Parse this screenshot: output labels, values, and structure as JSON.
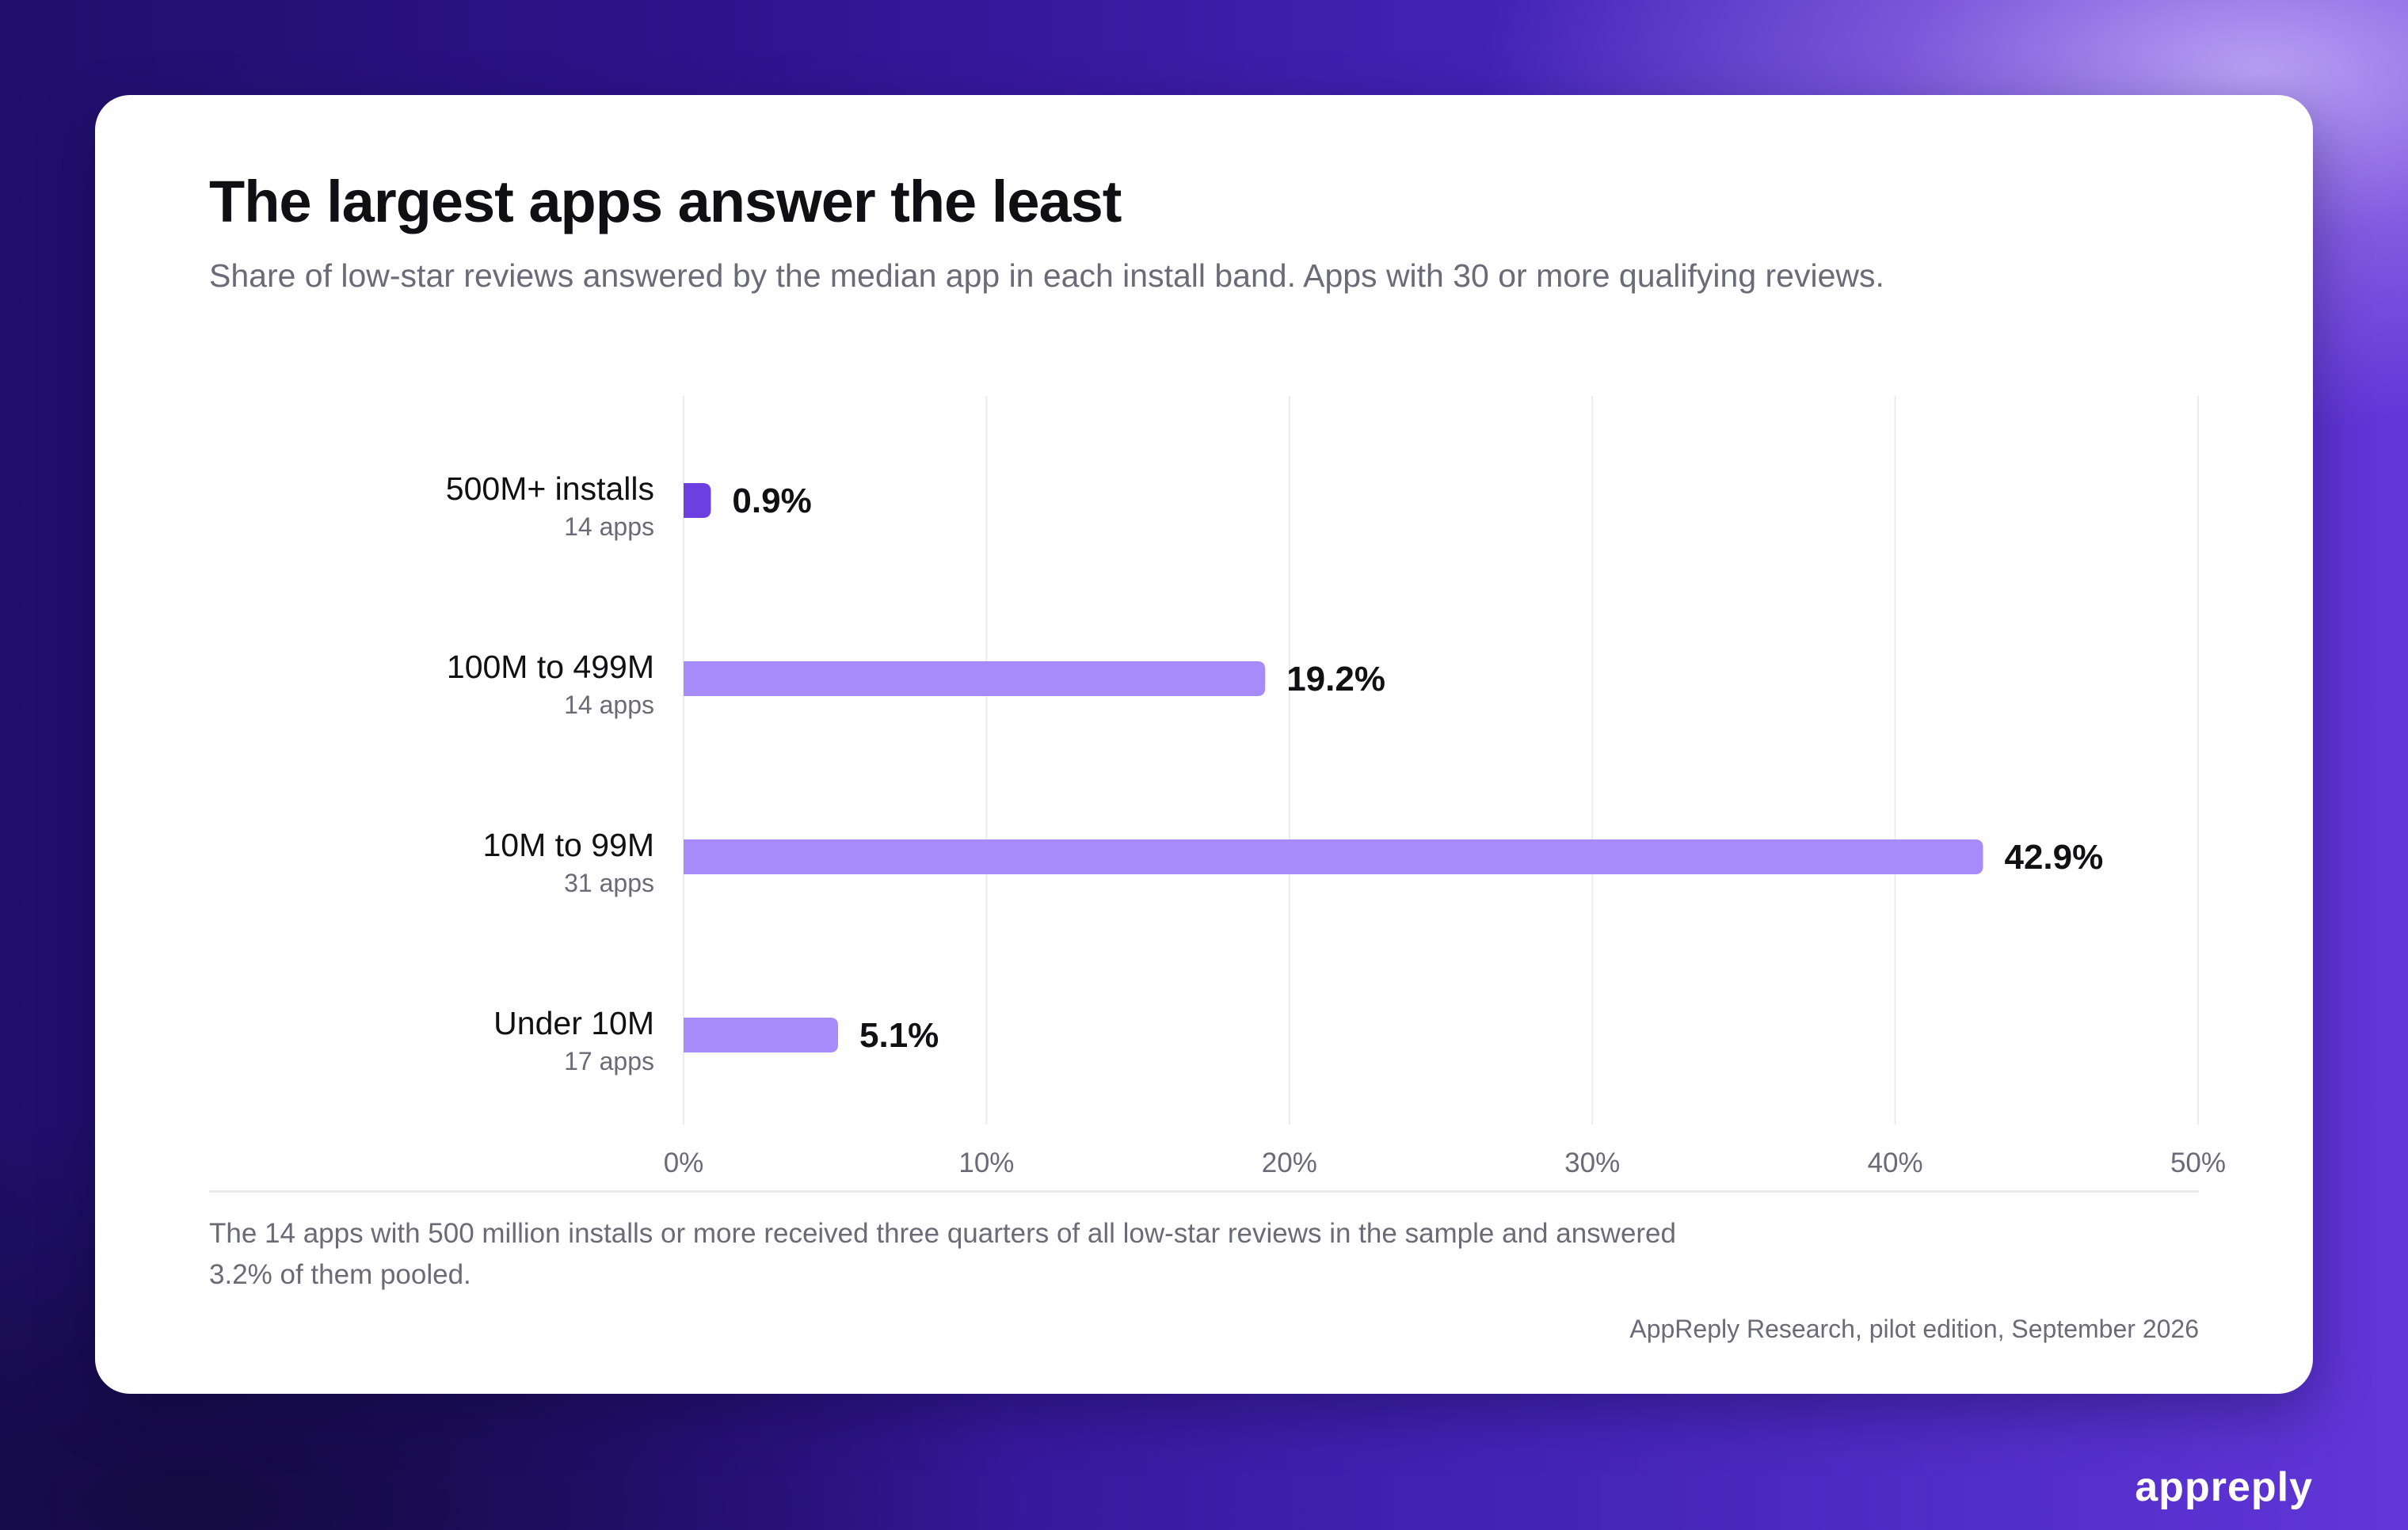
{
  "card": {
    "title": "The largest apps answer the least",
    "subtitle": "Share of low-star reviews answered by the median app in each install band. Apps with 30 or more qualifying reviews.",
    "note": "The 14 apps with 500 million installs or more received three quarters of all low-star reviews in the sample and answered 3.2% of them pooled.",
    "source": "AppReply Research, pilot edition, September 2026"
  },
  "brand": {
    "logo_text": "appreply"
  },
  "chart_data": {
    "type": "bar",
    "orientation": "horizontal",
    "title": "The largest apps answer the least",
    "subtitle": "Share of low-star reviews answered by the median app in each install band. Apps with 30 or more qualifying reviews.",
    "categories": [
      "500M+ installs",
      "100M to 499M",
      "10M to 99M",
      "Under 10M"
    ],
    "category_sublabels": [
      "14 apps",
      "14 apps",
      "31 apps",
      "17 apps"
    ],
    "values": [
      0.9,
      19.2,
      42.9,
      5.1
    ],
    "value_labels": [
      "0.9%",
      "19.2%",
      "42.9%",
      "5.1%"
    ],
    "xlim": [
      0,
      50
    ],
    "x_ticks": [
      0,
      10,
      20,
      30,
      40,
      50
    ],
    "x_tick_labels": [
      "0%",
      "10%",
      "20%",
      "30%",
      "40%",
      "50%"
    ],
    "grid": "vertical",
    "highlight_index": 0,
    "colors": {
      "highlight": "#6b3fe0",
      "bar": "#a78bfa",
      "grid": "#ececf0",
      "label": "#111114",
      "muted": "#6b6b78"
    }
  }
}
